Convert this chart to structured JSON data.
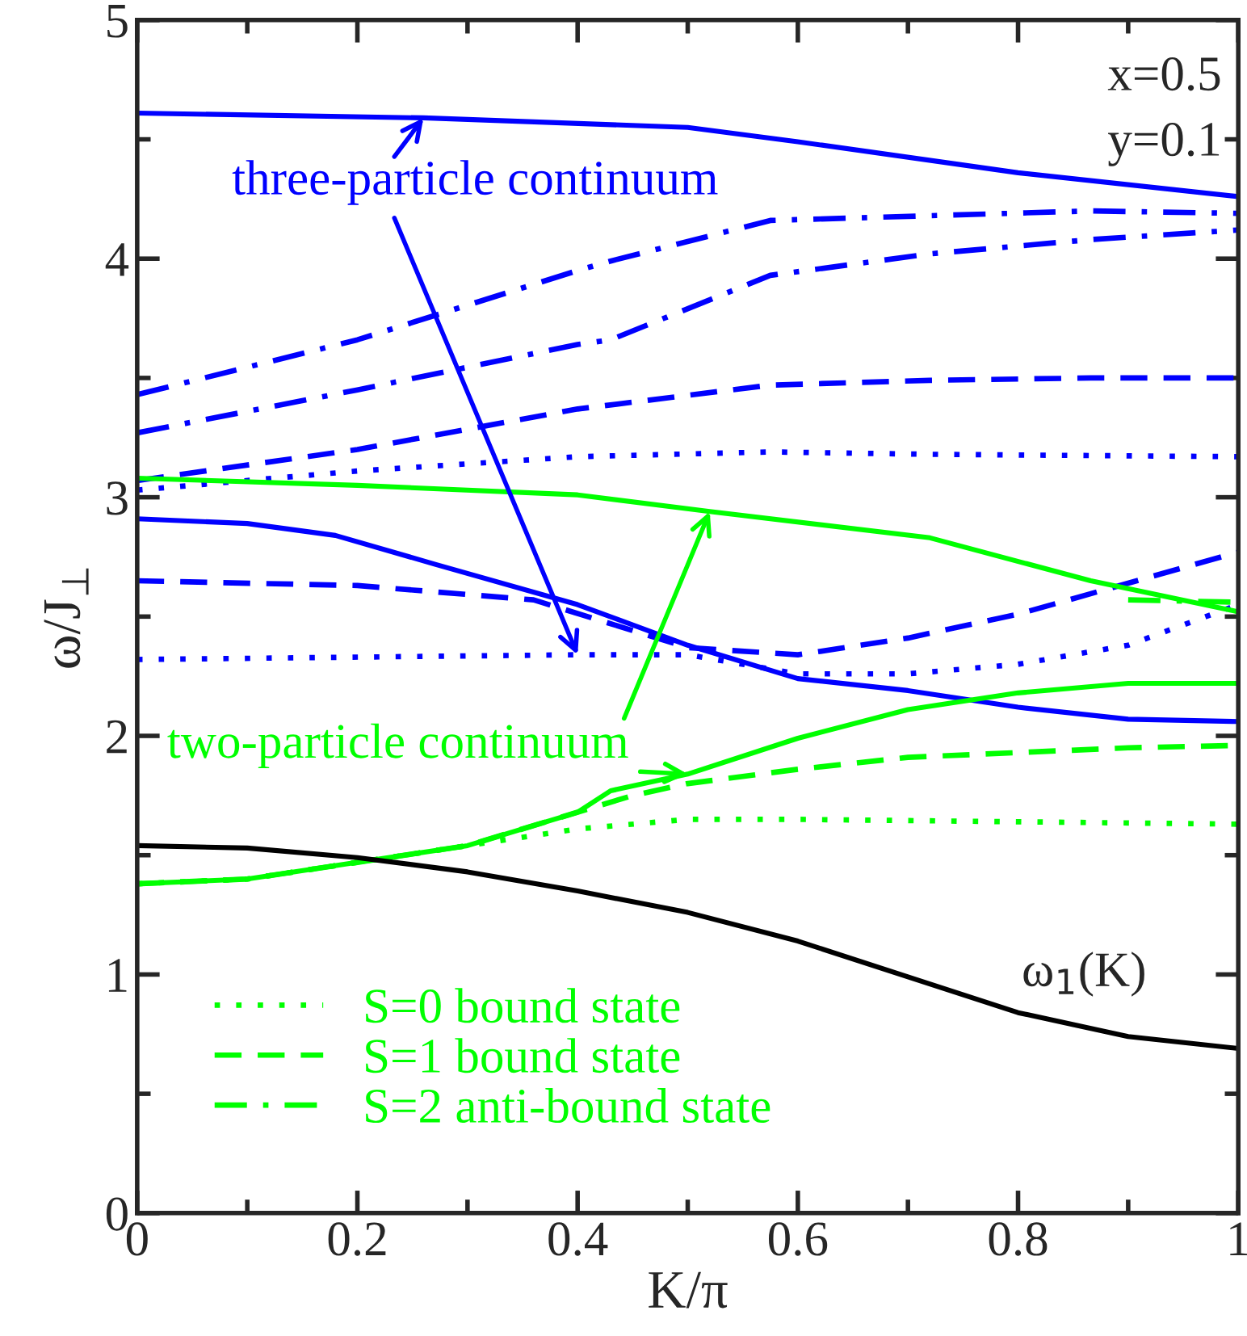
{
  "chart_data": {
    "type": "line",
    "xlabel": "K/π",
    "ylabel": "ω/J$_{⊥}$",
    "xlim": [
      0,
      1
    ],
    "ylim": [
      0,
      5
    ],
    "xticks": [
      0,
      0.2,
      0.4,
      0.6,
      0.8,
      1
    ],
    "yticks": [
      0,
      1,
      2,
      3,
      4,
      5
    ],
    "grid": false,
    "legend": "bottom left",
    "marker": "none",
    "series": [
      {
        "color": "#0000ff",
        "line_style": "solid",
        "x": [
          0,
          0.26,
          0.5,
          0.6,
          0.8,
          1
        ],
        "values": [
          4.61,
          4.59,
          4.55,
          4.49,
          4.36,
          4.26
        ]
      },
      {
        "color": "#0000ff",
        "line_style": "dashdot",
        "x": [
          0,
          0.2,
          0.4,
          0.43,
          0.575,
          0.72,
          0.866,
          1
        ],
        "values": [
          3.43,
          3.66,
          3.95,
          3.99,
          4.16,
          4.18,
          4.2,
          4.19
        ]
      },
      {
        "color": "#0000ff",
        "line_style": "dashdot",
        "x": [
          0,
          0.2,
          0.4,
          0.43,
          0.575,
          0.72,
          0.866,
          1
        ],
        "values": [
          3.27,
          3.45,
          3.64,
          3.66,
          3.93,
          4.02,
          4.08,
          4.12
        ]
      },
      {
        "color": "#0000ff",
        "line_style": "dashed",
        "x": [
          0,
          0.2,
          0.4,
          0.575,
          0.72,
          0.866,
          1
        ],
        "values": [
          3.07,
          3.2,
          3.37,
          3.47,
          3.49,
          3.5,
          3.5
        ]
      },
      {
        "color": "#0000ff",
        "line_style": "dotted",
        "x": [
          0,
          0.2,
          0.4,
          0.575,
          0.72,
          1
        ],
        "values": [
          3.03,
          3.11,
          3.17,
          3.19,
          3.18,
          3.17
        ]
      },
      {
        "color": "#0000ff",
        "line_style": "solid",
        "x": [
          0,
          0.1,
          0.18,
          0.27,
          0.4,
          0.5,
          0.6,
          0.7,
          0.8,
          0.9,
          1
        ],
        "values": [
          2.91,
          2.89,
          2.84,
          2.72,
          2.55,
          2.38,
          2.24,
          2.19,
          2.12,
          2.07,
          2.06
        ]
      },
      {
        "color": "#0000ff",
        "line_style": "dashed",
        "x": [
          0,
          0.2,
          0.36,
          0.5,
          0.6,
          0.7,
          0.8,
          0.9,
          1
        ],
        "values": [
          2.65,
          2.63,
          2.57,
          2.37,
          2.34,
          2.41,
          2.51,
          2.64,
          2.77
        ]
      },
      {
        "color": "#0000ff",
        "line_style": "dotted",
        "x": [
          0,
          0.4,
          0.5,
          0.6,
          0.7,
          0.8,
          0.9,
          1
        ],
        "values": [
          2.32,
          2.34,
          2.34,
          2.26,
          2.26,
          2.3,
          2.38,
          2.55
        ]
      },
      {
        "color": "#00ff00",
        "line_style": "solid",
        "x": [
          0,
          0.2,
          0.4,
          0.52,
          0.72,
          0.866,
          1
        ],
        "values": [
          3.08,
          3.05,
          3.01,
          2.94,
          2.83,
          2.65,
          2.52
        ]
      },
      {
        "color": "#00ff00",
        "line_style": "solid",
        "x": [
          0,
          0.1,
          0.2,
          0.3,
          0.4,
          0.43,
          0.5,
          0.6,
          0.7,
          0.8,
          0.9,
          1
        ],
        "values": [
          1.38,
          1.4,
          1.47,
          1.54,
          1.68,
          1.77,
          1.84,
          1.99,
          2.11,
          2.18,
          2.22,
          2.22
        ]
      },
      {
        "name": "S=0 bound state",
        "color": "#00ff00",
        "line_style": "dotted",
        "x": [
          0,
          0.1,
          0.2,
          0.3,
          0.4,
          0.5,
          0.6,
          0.8,
          1
        ],
        "values": [
          1.38,
          1.4,
          1.47,
          1.54,
          1.61,
          1.65,
          1.65,
          1.64,
          1.63
        ]
      },
      {
        "name": "S=1 bound state",
        "color": "#00ff00",
        "line_style": "dashed",
        "x": [
          0,
          0.1,
          0.2,
          0.3,
          0.4,
          0.45,
          0.5,
          0.6,
          0.7,
          0.8,
          0.9,
          1
        ],
        "values": [
          1.38,
          1.4,
          1.47,
          1.54,
          1.68,
          1.75,
          1.8,
          1.86,
          1.91,
          1.93,
          1.95,
          1.96
        ]
      },
      {
        "name": "S=2 anti-bound state",
        "color": "#00ff00",
        "line_style": "dashdot",
        "x": [
          0.9,
          1
        ],
        "values": [
          2.57,
          2.56
        ]
      },
      {
        "color": "#000000",
        "line_style": "solid",
        "x": [
          0,
          0.1,
          0.2,
          0.3,
          0.4,
          0.5,
          0.6,
          0.7,
          0.8,
          0.9,
          1
        ],
        "values": [
          1.54,
          1.53,
          1.49,
          1.43,
          1.35,
          1.26,
          1.14,
          0.99,
          0.84,
          0.74,
          0.69
        ]
      }
    ],
    "annotations": [
      {
        "text": "three-particle continuum",
        "x": 0.26,
        "y": 4.59
      },
      {
        "text": "two-particle continuum",
        "x": 0.52,
        "y": 2.94
      },
      "x=0.5",
      "y=0.1",
      "ω$_{1}$(K)"
    ]
  }
}
